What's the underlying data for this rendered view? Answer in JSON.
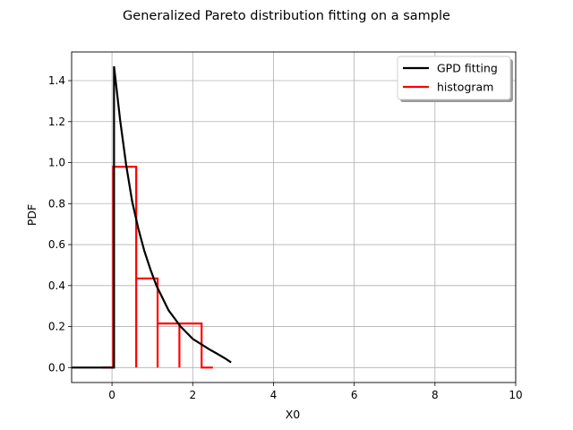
{
  "chart_data": {
    "type": "line",
    "title": "Generalized Pareto distribution fitting on a sample",
    "xlabel": "X0",
    "ylabel": "PDF",
    "xlim": [
      -1.0,
      10.0
    ],
    "ylim": [
      -0.073,
      1.54
    ],
    "xticks": [
      0,
      2,
      4,
      6,
      8,
      10
    ],
    "yticks": [
      0.0,
      0.2,
      0.4,
      0.6,
      0.8,
      1.0,
      1.2,
      1.4
    ],
    "xtick_labels": [
      "0",
      "2",
      "4",
      "6",
      "8",
      "10"
    ],
    "ytick_labels": [
      "0.0",
      "0.2",
      "0.4",
      "0.6",
      "0.8",
      "1.0",
      "1.2",
      "1.4"
    ],
    "grid": true,
    "legend_position": "top-right",
    "colors": {
      "gpd": "#000000",
      "hist": "#ff0000",
      "grid": "#b0b0b0"
    },
    "series": [
      {
        "name": "GPD fitting",
        "color": "#000000",
        "points": [
          [
            -1.0,
            0.0
          ],
          [
            0.05,
            0.0
          ],
          [
            0.05,
            1.47
          ],
          [
            0.2,
            1.21
          ],
          [
            0.35,
            0.99
          ],
          [
            0.5,
            0.81
          ],
          [
            0.65,
            0.68
          ],
          [
            0.8,
            0.57
          ],
          [
            0.95,
            0.48
          ],
          [
            1.1,
            0.4
          ],
          [
            1.25,
            0.34
          ],
          [
            1.4,
            0.28
          ],
          [
            1.55,
            0.24
          ],
          [
            1.7,
            0.2
          ],
          [
            1.85,
            0.17
          ],
          [
            2.0,
            0.14
          ],
          [
            2.2,
            0.115
          ],
          [
            2.4,
            0.09
          ],
          [
            2.6,
            0.068
          ],
          [
            2.8,
            0.045
          ],
          [
            2.95,
            0.025
          ]
        ]
      },
      {
        "name": "histogram",
        "color": "#ff0000",
        "points": [
          [
            -0.25,
            0.0
          ],
          [
            0.03,
            0.0
          ],
          [
            0.03,
            0.98
          ],
          [
            0.6,
            0.98
          ],
          [
            0.6,
            0.0
          ],
          [
            0.6,
            0.435
          ],
          [
            1.13,
            0.435
          ],
          [
            1.13,
            0.0
          ],
          [
            1.13,
            0.215
          ],
          [
            1.67,
            0.215
          ],
          [
            1.67,
            0.0
          ],
          [
            1.67,
            0.215
          ],
          [
            2.22,
            0.215
          ],
          [
            2.22,
            0.0
          ],
          [
            2.5,
            0.0
          ]
        ]
      }
    ]
  }
}
